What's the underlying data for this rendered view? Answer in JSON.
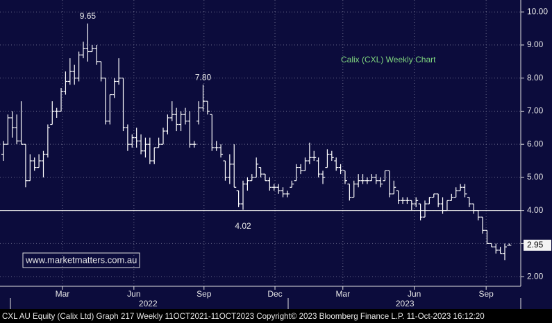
{
  "chart_data": {
    "type": "ohlc",
    "title": "Calix (CXL) Weekly Chart",
    "watermark": "www.marketmatters.com.au",
    "footer": "CXL AU Equity (Calix Ltd) Graph 217  Weekly 11OCT2021-11OCT2023  Copyright© 2023 Bloomberg Finance L.P.  11-Oct-2023 16:12:20",
    "color": "#ffffff",
    "grid": true,
    "reference_line": 4,
    "open": [
      5.7,
      6.0,
      6.8,
      6.5,
      6.1,
      6.0,
      4.9,
      5.5,
      5.3,
      5.5,
      5.7,
      6.6,
      7.0,
      7.0,
      7.6,
      7.9,
      8.2,
      8.0,
      8.7,
      8.9,
      8.8,
      8.9,
      8.5,
      8.0,
      6.7,
      7.5,
      7.9,
      8.0,
      6.5,
      6.0,
      6.2,
      6.1,
      5.8,
      6.0,
      5.5,
      5.9,
      6.0,
      6.4,
      6.8,
      6.9,
      6.6,
      6.9,
      6.7,
      6.0,
      6.7,
      7.1,
      7.3,
      6.9,
      5.9,
      5.9,
      5.5,
      5.0,
      5.4,
      4.6,
      4.2,
      4.8,
      4.9,
      5.0,
      5.3,
      5.1,
      4.9,
      4.7,
      4.7,
      4.6,
      4.5,
      4.7,
      4.9,
      5.3,
      5.2,
      5.5,
      5.6,
      5.5,
      5.1,
      5.3,
      5.7,
      5.5,
      5.3,
      5.2,
      4.8,
      4.4,
      4.8,
      4.9,
      4.9,
      4.9,
      5.0,
      4.9,
      4.9,
      5.2,
      4.5,
      4.6,
      4.3,
      4.3,
      4.3,
      4.2,
      4.2,
      3.8,
      4.2,
      4.4,
      4.5,
      4.2,
      4.0,
      4.3,
      4.4,
      4.6,
      4.7,
      4.4,
      4.2,
      4.0,
      3.8,
      3.4,
      3.0,
      2.9,
      2.8,
      2.7,
      2.95
    ],
    "high": [
      6.1,
      6.9,
      7.0,
      6.9,
      7.3,
      6.0,
      5.7,
      5.6,
      5.7,
      5.8,
      6.6,
      7.3,
      7.1,
      7.7,
      8.2,
      8.6,
      8.4,
      8.8,
      9.1,
      9.65,
      9.0,
      9.0,
      8.5,
      8.0,
      7.5,
      8.0,
      8.6,
      8.0,
      6.6,
      6.3,
      6.5,
      6.3,
      6.2,
      6.2,
      5.9,
      6.2,
      6.5,
      6.9,
      7.3,
      7.1,
      7.0,
      7.1,
      7.0,
      6.1,
      7.3,
      7.8,
      7.3,
      6.9,
      6.1,
      6.0,
      5.5,
      5.7,
      6.0,
      4.6,
      4.9,
      5.0,
      5.1,
      5.6,
      5.3,
      5.1,
      5.0,
      4.8,
      4.8,
      4.7,
      4.6,
      4.9,
      5.4,
      5.4,
      5.6,
      6.05,
      5.8,
      5.6,
      5.2,
      5.85,
      5.8,
      5.6,
      5.4,
      5.2,
      4.8,
      4.9,
      5.1,
      5.1,
      5.0,
      5.1,
      5.1,
      5.0,
      5.2,
      5.2,
      4.9,
      4.6,
      4.4,
      4.4,
      4.3,
      4.4,
      4.2,
      4.3,
      4.4,
      4.5,
      4.5,
      4.4,
      4.3,
      4.5,
      4.7,
      4.8,
      4.8,
      4.4,
      4.2,
      4.0,
      3.8,
      3.4,
      3.0,
      3.0,
      2.9,
      3.0,
      3.0
    ],
    "low": [
      5.5,
      6.0,
      6.2,
      6.0,
      6.0,
      4.7,
      4.9,
      5.2,
      5.3,
      5.0,
      5.6,
      6.6,
      6.8,
      7.0,
      7.5,
      7.8,
      7.8,
      7.9,
      8.6,
      8.5,
      8.8,
      8.4,
      7.9,
      6.6,
      6.6,
      7.4,
      7.8,
      6.4,
      5.8,
      5.9,
      5.9,
      5.7,
      5.6,
      5.4,
      5.4,
      5.9,
      6.0,
      6.3,
      6.7,
      6.4,
      6.4,
      6.6,
      5.9,
      5.9,
      6.6,
      7.0,
      6.9,
      5.8,
      5.8,
      5.6,
      4.9,
      4.8,
      4.7,
      4.1,
      4.02,
      4.6,
      4.9,
      5.0,
      5.0,
      4.9,
      4.6,
      4.6,
      4.5,
      4.4,
      4.4,
      4.7,
      4.9,
      5.1,
      5.2,
      5.4,
      5.5,
      5.0,
      4.8,
      5.3,
      5.5,
      5.2,
      5.1,
      4.8,
      4.3,
      4.4,
      4.7,
      4.8,
      4.8,
      4.9,
      4.8,
      4.7,
      4.9,
      4.4,
      4.5,
      4.2,
      4.2,
      4.2,
      4.0,
      4.1,
      3.7,
      3.8,
      4.2,
      4.4,
      4.1,
      3.9,
      4.0,
      4.3,
      4.4,
      4.6,
      4.4,
      4.1,
      3.9,
      3.7,
      3.3,
      3.0,
      2.9,
      2.7,
      2.7,
      2.5,
      2.95
    ],
    "close": [
      6.0,
      6.8,
      6.5,
      6.1,
      6.0,
      4.9,
      5.5,
      5.3,
      5.5,
      5.7,
      6.5,
      7.0,
      7.0,
      7.6,
      7.9,
      8.2,
      8.0,
      8.7,
      8.9,
      8.8,
      8.9,
      8.5,
      8.0,
      6.7,
      7.5,
      7.9,
      8.0,
      6.5,
      6.0,
      6.2,
      6.1,
      5.8,
      6.0,
      5.5,
      5.9,
      6.0,
      6.4,
      6.8,
      6.9,
      6.6,
      6.9,
      6.7,
      6.0,
      6.0,
      7.1,
      7.3,
      7.0,
      5.9,
      5.9,
      5.7,
      5.0,
      5.4,
      4.7,
      4.2,
      4.8,
      4.9,
      5.0,
      5.4,
      5.1,
      4.9,
      4.7,
      4.7,
      4.6,
      4.5,
      4.5,
      4.8,
      5.3,
      5.2,
      5.5,
      5.6,
      5.6,
      5.1,
      5.0,
      5.7,
      5.6,
      5.3,
      5.2,
      4.9,
      4.4,
      4.8,
      4.9,
      4.9,
      4.9,
      5.0,
      4.9,
      4.8,
      5.2,
      4.5,
      4.7,
      4.3,
      4.3,
      4.3,
      4.2,
      4.3,
      3.8,
      4.2,
      4.4,
      4.5,
      4.2,
      4.0,
      4.3,
      4.4,
      4.6,
      4.7,
      4.5,
      4.2,
      4.0,
      3.8,
      3.4,
      3.0,
      2.9,
      2.8,
      2.7,
      2.9,
      2.95
    ],
    "annotations": [
      {
        "value": 9.65,
        "label": "9.65"
      },
      {
        "value": 7.8,
        "label": "7.80"
      },
      {
        "value": 4.02,
        "label": "4.02"
      }
    ],
    "ylim": [
      1.71,
      10.36
    ],
    "yticks": [
      {
        "value": 2,
        "label": "2.00"
      },
      {
        "value": 3,
        "label": "3.00"
      },
      {
        "value": 4,
        "label": "4.00"
      },
      {
        "value": 5,
        "label": "5.00"
      },
      {
        "value": 6,
        "label": "6.00"
      },
      {
        "value": 7,
        "label": "7.00"
      },
      {
        "value": 8,
        "label": "8.00"
      },
      {
        "value": 9,
        "label": "9.00"
      },
      {
        "value": 10,
        "label": "10.00"
      }
    ],
    "xlim": [
      -0.78,
      116.6
    ],
    "xticks": [
      {
        "value": 13.3,
        "label": "Mar"
      },
      {
        "value": 29.4,
        "label": "Jun"
      },
      {
        "value": 45.2,
        "label": "Sep"
      },
      {
        "value": 61.2,
        "label": "Dec"
      },
      {
        "value": 76.5,
        "label": "Mar"
      },
      {
        "value": 92.6,
        "label": "Jun"
      },
      {
        "value": 108.8,
        "label": "Sep"
      }
    ],
    "year_ticks": [
      {
        "value": 32.6,
        "label": "2022"
      },
      {
        "value": 90.5,
        "label": "2023"
      }
    ]
  }
}
